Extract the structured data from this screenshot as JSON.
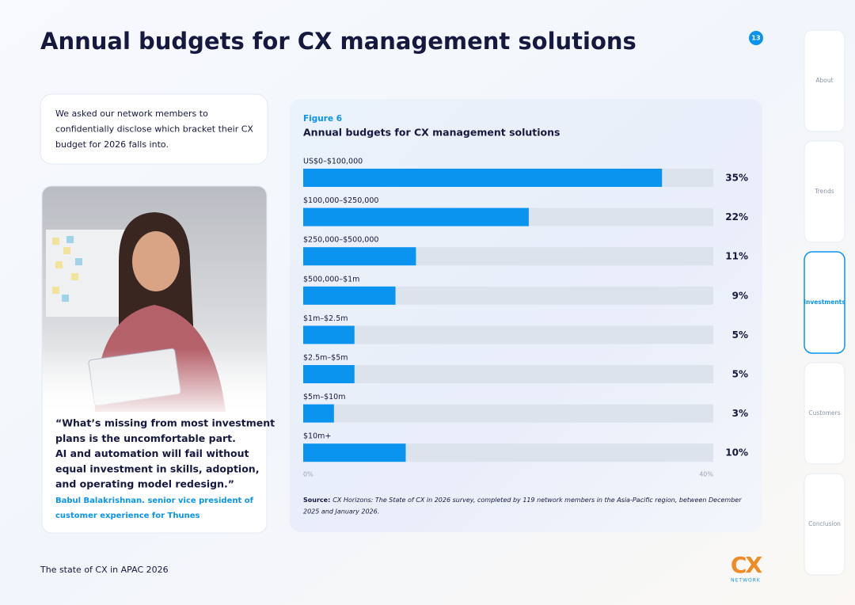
{
  "header": {
    "title": "Annual budgets for CX management solutions",
    "page_number": "13"
  },
  "intro": {
    "lines": [
      "We asked our network members to",
      "confidentially disclose which bracket their CX",
      "budget for 2026 falls into."
    ]
  },
  "quote": {
    "lines": [
      "“What’s missing from most investment",
      "plans is the uncomfortable part.",
      "AI and automation will fail without",
      "equal investment in skills, adoption,",
      "and operating model redesign.”"
    ],
    "attribution": [
      "Babul Balakrishnan. senior vice president of",
      "customer experience for Thunes"
    ]
  },
  "chart_data": {
    "type": "bar",
    "orientation": "horizontal",
    "figure_label": "Figure 6",
    "title": "Annual budgets for CX management solutions",
    "categories": [
      "US$0–$100,000",
      "$100,000–$250,000",
      "$250,000–$500,000",
      "$500,000–$1m",
      "$1m–$2.5m",
      "$2.5m–$5m",
      "$5m–$10m",
      "$10m+"
    ],
    "values": [
      35,
      22,
      11,
      9,
      5,
      5,
      3,
      10
    ],
    "value_labels": [
      "35%",
      "22%",
      "11%",
      "9%",
      "5%",
      "5%",
      "3%",
      "10%"
    ],
    "color": "#0a94f0",
    "track_color": "#dde3ec",
    "xlim": [
      0,
      40
    ],
    "xticks": [
      {
        "value": 0,
        "label": "0%"
      },
      {
        "value": 40,
        "label": "40%"
      }
    ],
    "source": {
      "label": "Source:",
      "lines": [
        "CX Horizons: The State of CX in 2026 survey, completed by 119 network members in the Asia-Pacific region, between December",
        "2025 and January 2026."
      ]
    }
  },
  "footer": {
    "text": "The state of CX in APAC 2026",
    "logo": "CX",
    "logo_sub": "NETWORK"
  },
  "nav": {
    "tabs": [
      "About",
      "Trends",
      "Investments",
      "Customers",
      "Conclusion"
    ]
  }
}
